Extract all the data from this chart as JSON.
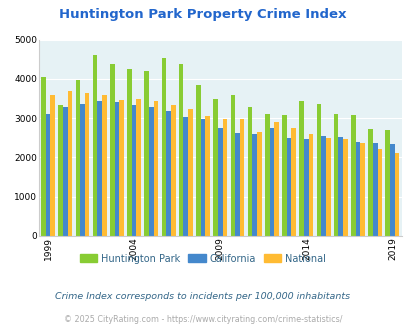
{
  "title": "Huntington Park Property Crime Index",
  "valid_years": [
    1999,
    2000,
    2001,
    2002,
    2003,
    2004,
    2005,
    2006,
    2007,
    2008,
    2009,
    2010,
    2011,
    2012,
    2013,
    2014,
    2015,
    2016,
    2017,
    2018,
    2019
  ],
  "hp_vals": [
    4050,
    3340,
    3980,
    4610,
    4380,
    4250,
    4200,
    4520,
    4390,
    3850,
    3500,
    3580,
    3290,
    3110,
    3070,
    3430,
    3360,
    3110,
    3070,
    2730,
    2700
  ],
  "ca_vals": [
    3110,
    3290,
    3350,
    3440,
    3410,
    3340,
    3290,
    3180,
    3020,
    2970,
    2740,
    2620,
    2590,
    2760,
    2490,
    2470,
    2540,
    2510,
    2400,
    2360,
    2330
  ],
  "nat_vals": [
    3600,
    3680,
    3650,
    3590,
    3460,
    3490,
    3440,
    3340,
    3230,
    3060,
    2980,
    2980,
    2640,
    2890,
    2750,
    2600,
    2490,
    2460,
    2360,
    2210,
    2110
  ],
  "hp_color": "#88cc33",
  "ca_color": "#4488cc",
  "nat_color": "#ffbb33",
  "bg_color": "#e6f2f5",
  "title_color": "#2266cc",
  "legend_text_color": "#336688",
  "subtitle": "Crime Index corresponds to incidents per 100,000 inhabitants",
  "subtitle_color": "#336688",
  "footer": "© 2025 CityRating.com - https://www.cityrating.com/crime-statistics/",
  "footer_color": "#aaaaaa",
  "ylim": [
    0,
    5000
  ],
  "yticks": [
    0,
    1000,
    2000,
    3000,
    4000,
    5000
  ],
  "xtick_years": [
    1999,
    2004,
    2009,
    2014,
    2019
  ]
}
